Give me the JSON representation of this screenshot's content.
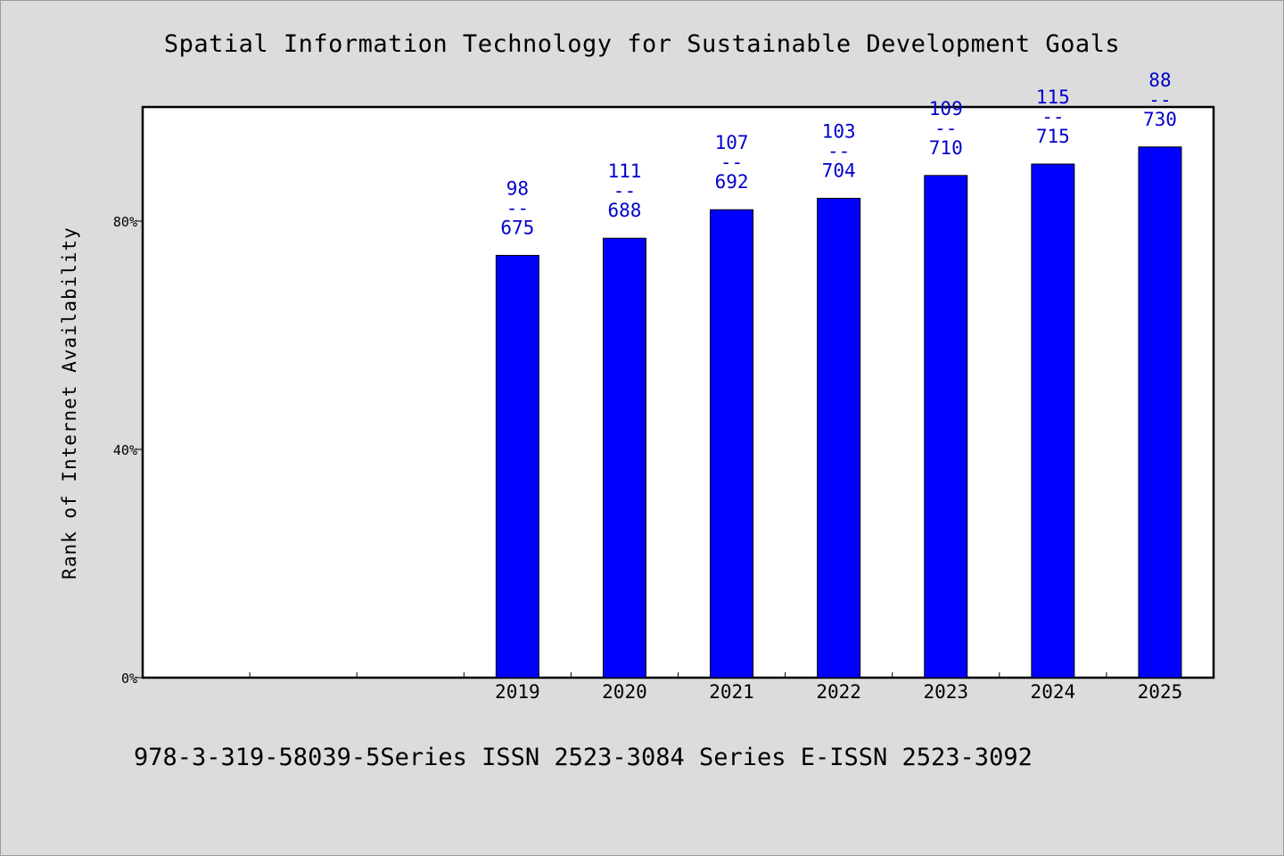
{
  "chart_data": {
    "type": "bar",
    "title": "Spatial Information Technology for Sustainable Development Goals",
    "xlabel": "",
    "ylabel": "Rank of Internet Availability",
    "categories": [
      "",
      "",
      "",
      "2019",
      "2020",
      "2021",
      "2022",
      "2023",
      "2024",
      "2025"
    ],
    "values": [
      null,
      null,
      null,
      74,
      77,
      82,
      84,
      88,
      90,
      93
    ],
    "bar_labels": [
      null,
      null,
      null,
      [
        "98",
        "--",
        "675"
      ],
      [
        "111",
        "--",
        "688"
      ],
      [
        "107",
        "--",
        "692"
      ],
      [
        "103",
        "--",
        "704"
      ],
      [
        "109",
        "--",
        "710"
      ],
      [
        "115",
        "--",
        "715"
      ],
      [
        "88",
        "--",
        "730"
      ]
    ],
    "ylim": [
      0,
      100
    ],
    "yticks": [
      {
        "value": 0,
        "label": "0%"
      },
      {
        "value": 40,
        "label": "40%"
      },
      {
        "value": 80,
        "label": "80%"
      }
    ],
    "grid": false,
    "bar_color": "#0000ff",
    "label_color": "#0000cc"
  },
  "footer": "978-3-319-58039-5Series ISSN 2523-3084 Series E-ISSN 2523-3092"
}
